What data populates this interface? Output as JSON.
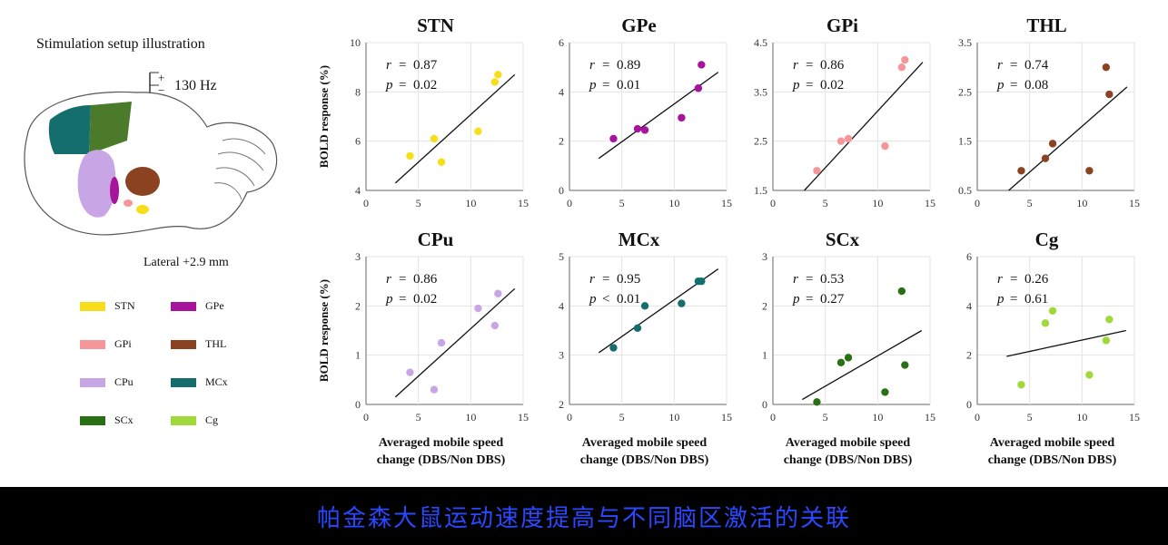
{
  "setup": {
    "title": "Stimulation setup illustration",
    "frequency": "130 Hz",
    "plus": "+",
    "minus": "−",
    "lateral": "Lateral +2.9 mm"
  },
  "legend": [
    {
      "label": "STN",
      "color": "#f7dd1a"
    },
    {
      "label": "GPe",
      "color": "#a5149a"
    },
    {
      "label": "GPi",
      "color": "#f5979a"
    },
    {
      "label": "THL",
      "color": "#8b4220"
    },
    {
      "label": "CPu",
      "color": "#c8a6e6"
    },
    {
      "label": "MCx",
      "color": "#146e6e"
    },
    {
      "label": "SCx",
      "color": "#2b6f15"
    },
    {
      "label": "Cg",
      "color": "#9fd93a"
    }
  ],
  "common": {
    "ylabel": "BOLD response (%)",
    "xlabel_line1": "Averaged mobile speed",
    "xlabel_line2": "change (DBS/Non DBS)"
  },
  "chart_data": [
    {
      "type": "scatter",
      "title": "STN",
      "color": "#f7dd1a",
      "r": "0.87",
      "p": "0.02",
      "p_op": "=",
      "xlim": [
        0,
        15
      ],
      "xticks": [
        0,
        5,
        10,
        15
      ],
      "ylim": [
        4,
        10
      ],
      "yticks": [
        4,
        6,
        8,
        10
      ],
      "points": [
        [
          4.2,
          5.4
        ],
        [
          6.5,
          6.1
        ],
        [
          7.2,
          5.15
        ],
        [
          10.7,
          6.4
        ],
        [
          12.3,
          8.4
        ],
        [
          12.6,
          8.7
        ]
      ],
      "fit": [
        [
          2.8,
          4.3
        ],
        [
          14.2,
          8.7
        ]
      ]
    },
    {
      "type": "scatter",
      "title": "GPe",
      "color": "#a5149a",
      "r": "0.89",
      "p": "0.01",
      "p_op": "=",
      "xlim": [
        0,
        15
      ],
      "xticks": [
        0,
        5,
        10,
        15
      ],
      "ylim": [
        0,
        6
      ],
      "yticks": [
        0,
        2,
        4,
        6
      ],
      "points": [
        [
          4.2,
          2.1
        ],
        [
          6.5,
          2.5
        ],
        [
          7.2,
          2.45
        ],
        [
          10.7,
          2.95
        ],
        [
          12.3,
          4.15
        ],
        [
          12.6,
          5.1
        ]
      ],
      "fit": [
        [
          2.8,
          1.3
        ],
        [
          14.2,
          4.8
        ]
      ]
    },
    {
      "type": "scatter",
      "title": "GPi",
      "color": "#f5979a",
      "r": "0.86",
      "p": "0.02",
      "p_op": "=",
      "xlim": [
        0,
        15
      ],
      "xticks": [
        0,
        5,
        10,
        15
      ],
      "ylim": [
        1.5,
        4.5
      ],
      "yticks": [
        "1.5",
        "2.5",
        "3.5",
        "4.5"
      ],
      "points": [
        [
          4.2,
          1.9
        ],
        [
          6.5,
          2.5
        ],
        [
          7.2,
          2.55
        ],
        [
          10.7,
          2.4
        ],
        [
          12.3,
          4.0
        ],
        [
          12.6,
          4.15
        ]
      ],
      "fit": [
        [
          3.0,
          1.5
        ],
        [
          14.3,
          4.1
        ]
      ]
    },
    {
      "type": "scatter",
      "title": "THL",
      "color": "#8b4220",
      "r": "0.74",
      "p": "0.08",
      "p_op": "=",
      "xlim": [
        0,
        15
      ],
      "xticks": [
        0,
        5,
        10,
        15
      ],
      "ylim": [
        0.5,
        3.5
      ],
      "yticks": [
        "0.5",
        "1.5",
        "2.5",
        "3.5"
      ],
      "points": [
        [
          4.2,
          0.9
        ],
        [
          6.5,
          1.15
        ],
        [
          7.2,
          1.45
        ],
        [
          10.7,
          0.9
        ],
        [
          12.3,
          3.0
        ],
        [
          12.6,
          2.45
        ]
      ],
      "fit": [
        [
          3.0,
          0.5
        ],
        [
          14.3,
          2.6
        ]
      ]
    },
    {
      "type": "scatter",
      "title": "CPu",
      "color": "#c8a6e6",
      "r": "0.86",
      "p": "0.02",
      "p_op": "=",
      "xlim": [
        0,
        15
      ],
      "xticks": [
        0,
        5,
        10,
        15
      ],
      "ylim": [
        0,
        3
      ],
      "yticks": [
        0,
        1,
        2,
        3
      ],
      "points": [
        [
          4.2,
          0.65
        ],
        [
          6.5,
          0.3
        ],
        [
          7.2,
          1.25
        ],
        [
          10.7,
          1.95
        ],
        [
          12.3,
          1.6
        ],
        [
          12.6,
          2.25
        ]
      ],
      "fit": [
        [
          2.8,
          0.15
        ],
        [
          14.2,
          2.35
        ]
      ]
    },
    {
      "type": "scatter",
      "title": "MCx",
      "color": "#146e6e",
      "r": "0.95",
      "p": "0.01",
      "p_op": "<",
      "xlim": [
        0,
        15
      ],
      "xticks": [
        0,
        5,
        10,
        15
      ],
      "ylim": [
        2,
        5
      ],
      "yticks": [
        2,
        3,
        4,
        5
      ],
      "points": [
        [
          4.2,
          3.15
        ],
        [
          6.5,
          3.55
        ],
        [
          7.2,
          4.0
        ],
        [
          10.7,
          4.05
        ],
        [
          12.3,
          4.5
        ],
        [
          12.6,
          4.5
        ]
      ],
      "fit": [
        [
          2.8,
          3.05
        ],
        [
          14.2,
          4.75
        ]
      ]
    },
    {
      "type": "scatter",
      "title": "SCx",
      "color": "#2b6f15",
      "r": "0.53",
      "p": "0.27",
      "p_op": "=",
      "xlim": [
        0,
        15
      ],
      "xticks": [
        0,
        5,
        10,
        15
      ],
      "ylim": [
        0,
        3
      ],
      "yticks": [
        0,
        1,
        2,
        3
      ],
      "points": [
        [
          4.2,
          0.05
        ],
        [
          6.5,
          0.85
        ],
        [
          7.2,
          0.95
        ],
        [
          10.7,
          0.25
        ],
        [
          12.3,
          2.3
        ],
        [
          12.6,
          0.8
        ]
      ],
      "fit": [
        [
          2.8,
          0.1
        ],
        [
          14.2,
          1.5
        ]
      ]
    },
    {
      "type": "scatter",
      "title": "Cg",
      "color": "#9fd93a",
      "r": "0.26",
      "p": "0.61",
      "p_op": "=",
      "xlim": [
        0,
        15
      ],
      "xticks": [
        0,
        5,
        10,
        15
      ],
      "ylim": [
        0,
        6
      ],
      "yticks": [
        0,
        2,
        4,
        6
      ],
      "points": [
        [
          4.2,
          0.8
        ],
        [
          6.5,
          3.3
        ],
        [
          7.2,
          3.8
        ],
        [
          10.7,
          1.2
        ],
        [
          12.3,
          2.6
        ],
        [
          12.6,
          3.45
        ]
      ],
      "fit": [
        [
          2.8,
          1.95
        ],
        [
          14.2,
          3.0
        ]
      ]
    }
  ],
  "banner": {
    "text": "帕金森大鼠运动速度提高与不同脑区激活的关联"
  }
}
